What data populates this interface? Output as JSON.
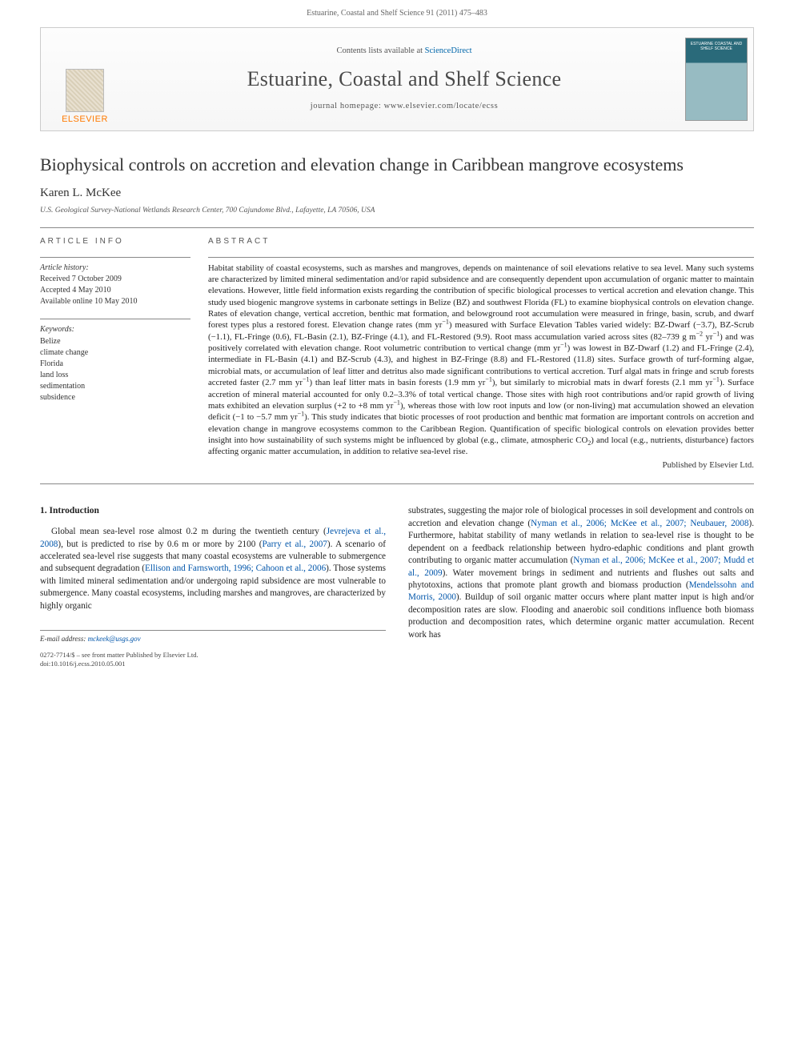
{
  "running_head": "Estuarine, Coastal and Shelf Science 91 (2011) 475–483",
  "masthead": {
    "contents_prefix": "Contents lists available at ",
    "contents_link": "ScienceDirect",
    "journal_name": "Estuarine, Coastal and Shelf Science",
    "homepage_prefix": "journal homepage: ",
    "homepage_url": "www.elsevier.com/locate/ecss",
    "publisher": "ELSEVIER",
    "cover_caption": "ESTUARINE COASTAL AND SHELF SCIENCE"
  },
  "article": {
    "title": "Biophysical controls on accretion and elevation change in Caribbean mangrove ecosystems",
    "author": "Karen L. McKee",
    "affiliation": "U.S. Geological Survey-National Wetlands Research Center, 700 Cajundome Blvd., Lafayette, LA 70506, USA"
  },
  "article_info": {
    "label": "ARTICLE INFO",
    "history_head": "Article history:",
    "history": [
      "Received 7 October 2009",
      "Accepted 4 May 2010",
      "Available online 10 May 2010"
    ],
    "keywords_head": "Keywords:",
    "keywords": [
      "Belize",
      "climate change",
      "Florida",
      "land loss",
      "sedimentation",
      "subsidence"
    ]
  },
  "abstract": {
    "label": "ABSTRACT",
    "text_html": "Habitat stability of coastal ecosystems, such as marshes and mangroves, depends on maintenance of soil elevations relative to sea level. Many such systems are characterized by limited mineral sedimentation and/or rapid subsidence and are consequently dependent upon accumulation of organic matter to maintain elevations. However, little field information exists regarding the contribution of specific biological processes to vertical accretion and elevation change. This study used biogenic mangrove systems in carbonate settings in Belize (BZ) and southwest Florida (FL) to examine biophysical controls on elevation change. Rates of elevation change, vertical accretion, benthic mat formation, and belowground root accumulation were measured in fringe, basin, scrub, and dwarf forest types plus a restored forest. Elevation change rates (mm yr<sup>−1</sup>) measured with Surface Elevation Tables varied widely: BZ-Dwarf (−3.7), BZ-Scrub (−1.1), FL-Fringe (0.6), FL-Basin (2.1), BZ-Fringe (4.1), and FL-Restored (9.9). Root mass accumulation varied across sites (82–739 g m<sup>−2</sup> yr<sup>−1</sup>) and was positively correlated with elevation change. Root volumetric contribution to vertical change (mm yr<sup>−1</sup>) was lowest in BZ-Dwarf (1.2) and FL-Fringe (2.4), intermediate in FL-Basin (4.1) and BZ-Scrub (4.3), and highest in BZ-Fringe (8.8) and FL-Restored (11.8) sites. Surface growth of turf-forming algae, microbial mats, or accumulation of leaf litter and detritus also made significant contributions to vertical accretion. Turf algal mats in fringe and scrub forests accreted faster (2.7 mm yr<sup>−1</sup>) than leaf litter mats in basin forests (1.9 mm yr<sup>−1</sup>), but similarly to microbial mats in dwarf forests (2.1 mm yr<sup>−1</sup>). Surface accretion of mineral material accounted for only 0.2–3.3% of total vertical change. Those sites with high root contributions and/or rapid growth of living mats exhibited an elevation surplus (+2 to +8 mm yr<sup>−1</sup>), whereas those with low root inputs and low (or non-living) mat accumulation showed an elevation deficit (−1 to −5.7 mm yr<sup>−1</sup>). This study indicates that biotic processes of root production and benthic mat formation are important controls on accretion and elevation change in mangrove ecosystems common to the Caribbean Region. Quantification of specific biological controls on elevation provides better insight into how sustainability of such systems might be influenced by global (e.g., climate, atmospheric CO<sub>2</sub>) and local (e.g., nutrients, disturbance) factors affecting organic matter accumulation, in addition to relative sea-level rise.",
    "publisher_line": "Published by Elsevier Ltd."
  },
  "body": {
    "section_heading": "1. Introduction",
    "col1_html": "Global mean sea-level rose almost 0.2 m during the twentieth century (<span class=\"cite\">Jevrejeva et al., 2008</span>), but is predicted to rise by 0.6 m or more by 2100 (<span class=\"cite\">Parry et al., 2007</span>). A scenario of accelerated sea-level rise suggests that many coastal ecosystems are vulnerable to submergence and subsequent degradation (<span class=\"cite\">Ellison and Farnsworth, 1996; Cahoon et al., 2006</span>). Those systems with limited mineral sedimentation and/or undergoing rapid subsidence are most vulnerable to submergence. Many coastal ecosystems, including marshes and mangroves, are characterized by highly organic",
    "col2_html": "substrates, suggesting the major role of biological processes in soil development and controls on accretion and elevation change (<span class=\"cite\">Nyman et al., 2006; McKee et al., 2007; Neubauer, 2008</span>). Furthermore, habitat stability of many wetlands in relation to sea-level rise is thought to be dependent on a feedback relationship between hydro-edaphic conditions and plant growth contributing to organic matter accumulation (<span class=\"cite\">Nyman et al., 2006; McKee et al., 2007; Mudd et al., 2009</span>). Water movement brings in sediment and nutrients and flushes out salts and phytotoxins, actions that promote plant growth and biomass production (<span class=\"cite\">Mendelssohn and Morris, 2000</span>). Buildup of soil organic matter occurs where plant matter input is high and/or decomposition rates are slow. Flooding and anaerobic soil conditions influence both biomass production and decomposition rates, which determine organic matter accumulation. Recent work has"
  },
  "footer": {
    "email_label": "E-mail address:",
    "email": "mckeek@usgs.gov",
    "copyright1": "0272-7714/$ – see front matter Published by Elsevier Ltd.",
    "copyright2": "doi:10.1016/j.ecss.2010.05.001"
  },
  "colors": {
    "link": "#0055aa",
    "orange": "#ff7a00",
    "rule": "#888888",
    "text": "#222222"
  }
}
